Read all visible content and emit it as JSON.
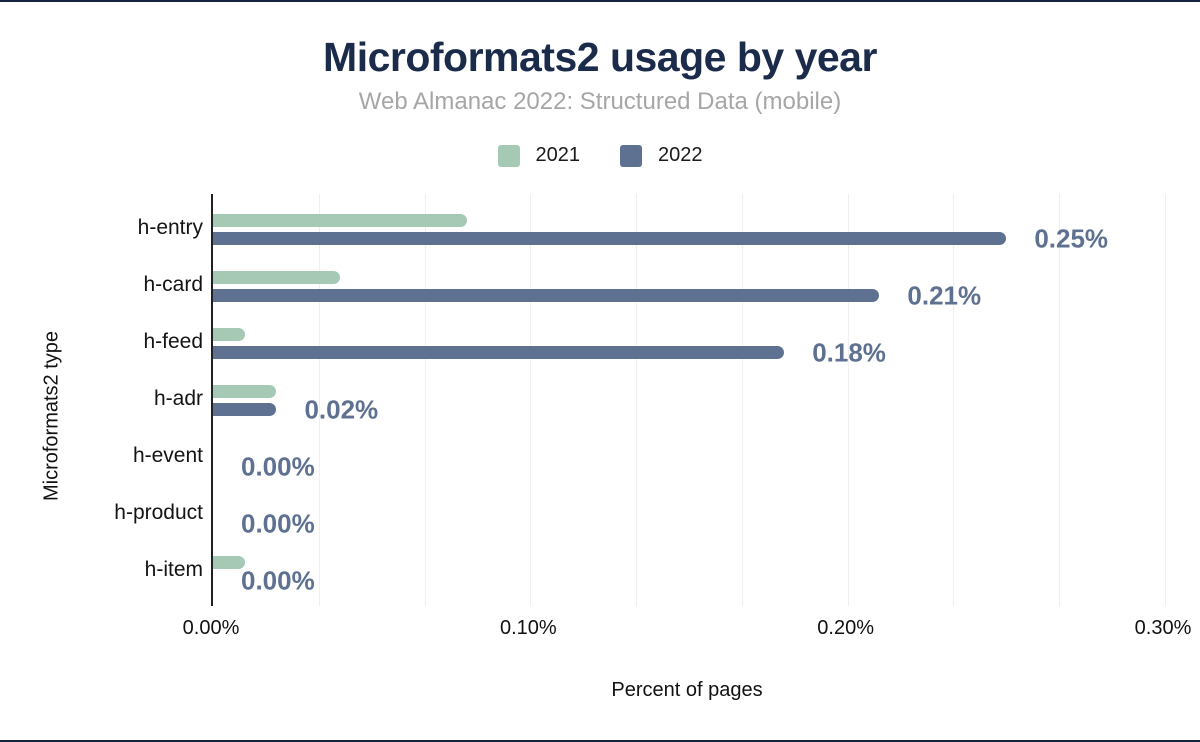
{
  "page": {
    "title": "Microformats2 usage by year",
    "subtitle": "Web Almanac 2022: Structured Data (mobile)"
  },
  "chart_data": {
    "type": "bar",
    "orientation": "horizontal",
    "title": "Microformats2 usage by year",
    "subtitle": "Web Almanac 2022: Structured Data (mobile)",
    "categories": [
      "h-entry",
      "h-card",
      "h-feed",
      "h-adr",
      "h-event",
      "h-product",
      "h-item"
    ],
    "series": [
      {
        "name": "2021",
        "color": "#a5c9b5",
        "values": [
          0.08,
          0.04,
          0.01,
          0.02,
          0.0,
          0.0,
          0.01
        ]
      },
      {
        "name": "2022",
        "color": "#5e7190",
        "values": [
          0.25,
          0.21,
          0.18,
          0.02,
          0.0,
          0.0,
          0.0
        ],
        "data_labels": [
          "0.25%",
          "0.21%",
          "0.18%",
          "0.02%",
          "0.00%",
          "0.00%",
          "0.00%"
        ]
      }
    ],
    "xlabel": "Percent of pages",
    "ylabel": "Microformats2 type",
    "x_ticks": [
      "0.00%",
      "0.10%",
      "0.20%",
      "0.30%"
    ],
    "xlim": [
      0,
      0.3
    ],
    "grid": "vertical, 3 minor divisions per labeled tick",
    "legend_position": "top-center",
    "value_labels_series": "2022"
  },
  "colors": {
    "title": "#1b2b4a",
    "subtitle": "#a6a6a6",
    "series_2021": "#a5c9b5",
    "series_2022": "#5e7190",
    "value_label": "#5e7190",
    "axis_line": "#212121",
    "gridline": "#efefef",
    "text": "#141414",
    "page_border": "#16243d"
  }
}
